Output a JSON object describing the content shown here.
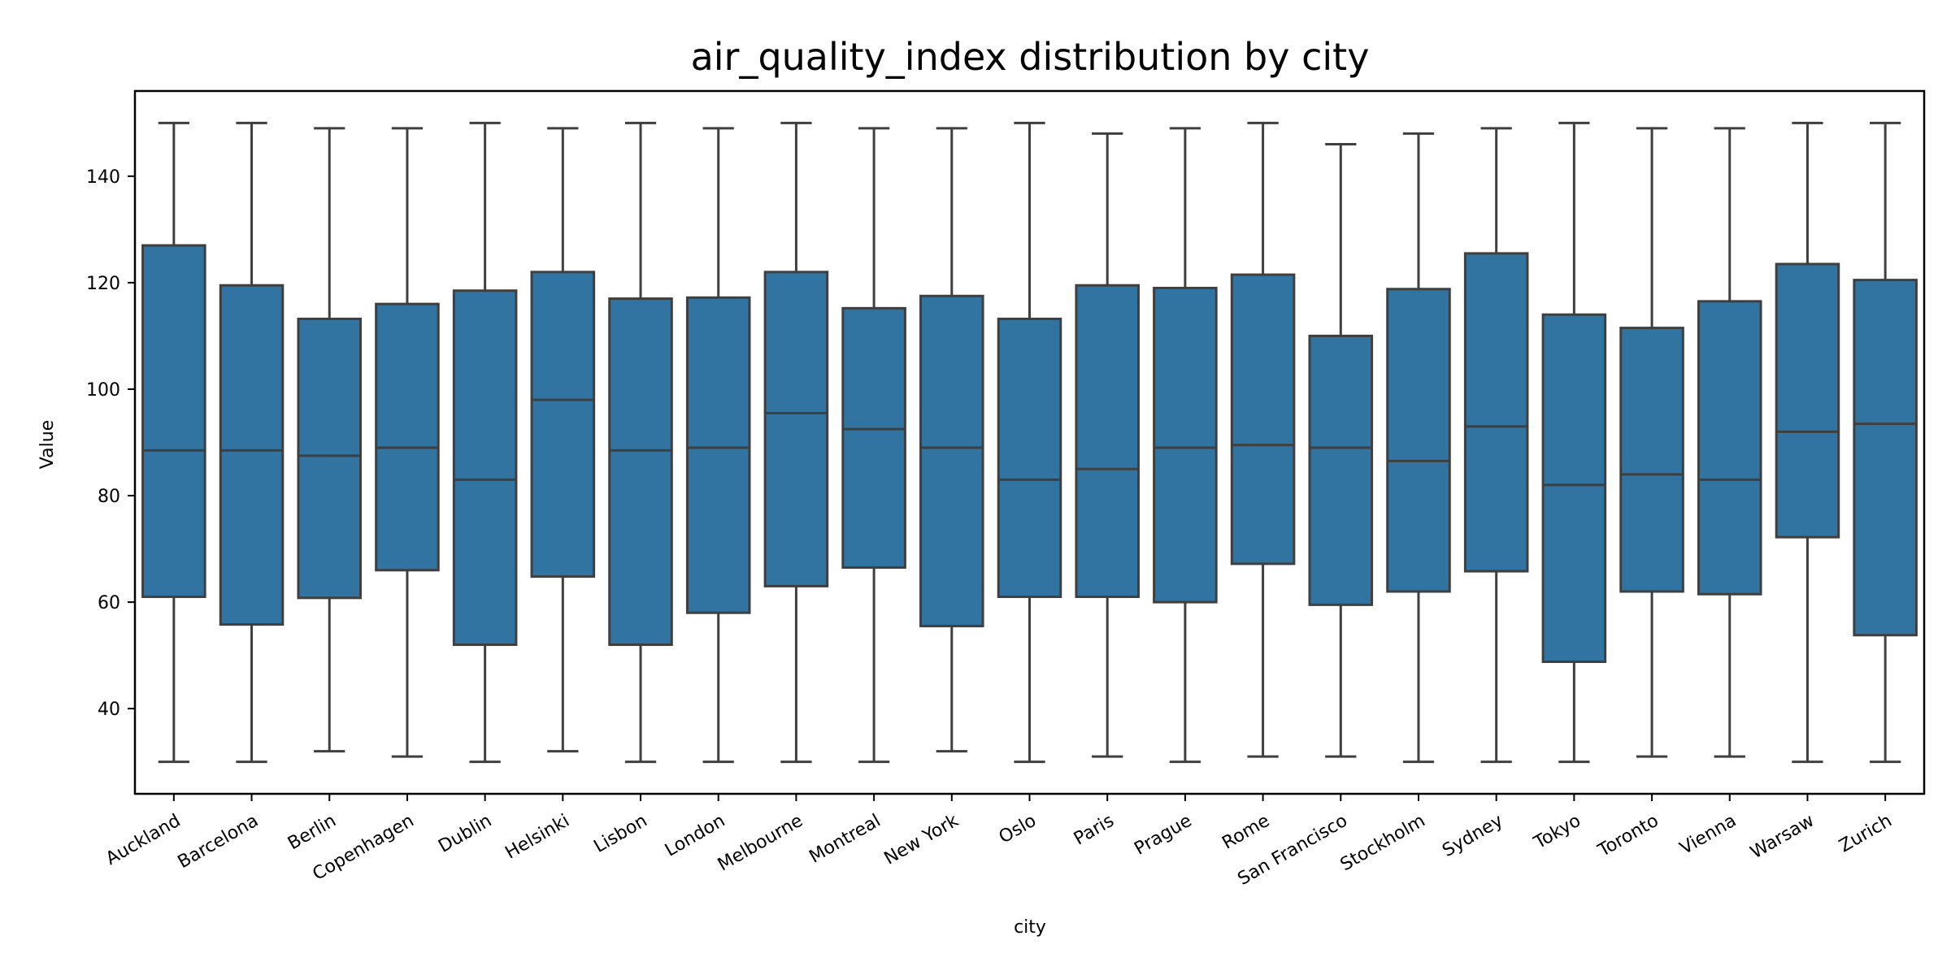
{
  "chart_data": {
    "type": "box",
    "title": "air_quality_index distribution by city",
    "xlabel": "city",
    "ylabel": "Value",
    "ylim": [
      24,
      156
    ],
    "yticks": [
      40,
      60,
      80,
      100,
      120,
      140
    ],
    "grid": false,
    "legend": "none",
    "box_color": "#3274a1",
    "line_color": "#3f3f3f",
    "categories": [
      "Auckland",
      "Barcelona",
      "Berlin",
      "Copenhagen",
      "Dublin",
      "Helsinki",
      "Lisbon",
      "London",
      "Melbourne",
      "Montreal",
      "New York",
      "Oslo",
      "Paris",
      "Prague",
      "Rome",
      "San Francisco",
      "Stockholm",
      "Sydney",
      "Tokyo",
      "Toronto",
      "Vienna",
      "Warsaw",
      "Zurich"
    ],
    "boxes": [
      {
        "min": 30,
        "q1": 61.0,
        "median": 88.5,
        "q3": 127.0,
        "max": 150
      },
      {
        "min": 30,
        "q1": 55.8,
        "median": 88.5,
        "q3": 119.5,
        "max": 150
      },
      {
        "min": 32,
        "q1": 60.8,
        "median": 87.5,
        "q3": 113.2,
        "max": 149
      },
      {
        "min": 31,
        "q1": 66.0,
        "median": 89.0,
        "q3": 116.0,
        "max": 149
      },
      {
        "min": 30,
        "q1": 52.0,
        "median": 83.0,
        "q3": 118.5,
        "max": 150
      },
      {
        "min": 32,
        "q1": 64.8,
        "median": 98.0,
        "q3": 122.0,
        "max": 149
      },
      {
        "min": 30,
        "q1": 52.0,
        "median": 88.5,
        "q3": 117.0,
        "max": 150
      },
      {
        "min": 30,
        "q1": 58.0,
        "median": 89.0,
        "q3": 117.2,
        "max": 149
      },
      {
        "min": 30,
        "q1": 63.0,
        "median": 95.5,
        "q3": 122.0,
        "max": 150
      },
      {
        "min": 30,
        "q1": 66.5,
        "median": 92.5,
        "q3": 115.2,
        "max": 149
      },
      {
        "min": 32,
        "q1": 55.5,
        "median": 89.0,
        "q3": 117.5,
        "max": 149
      },
      {
        "min": 30,
        "q1": 61.0,
        "median": 83.0,
        "q3": 113.2,
        "max": 150
      },
      {
        "min": 31,
        "q1": 61.0,
        "median": 85.0,
        "q3": 119.5,
        "max": 148
      },
      {
        "min": 30,
        "q1": 60.0,
        "median": 89.0,
        "q3": 119.0,
        "max": 149
      },
      {
        "min": 31,
        "q1": 67.2,
        "median": 89.5,
        "q3": 121.5,
        "max": 150
      },
      {
        "min": 31,
        "q1": 59.5,
        "median": 89.0,
        "q3": 110.0,
        "max": 146
      },
      {
        "min": 30,
        "q1": 62.0,
        "median": 86.5,
        "q3": 118.8,
        "max": 148
      },
      {
        "min": 30,
        "q1": 65.8,
        "median": 93.0,
        "q3": 125.5,
        "max": 149
      },
      {
        "min": 30,
        "q1": 48.8,
        "median": 82.0,
        "q3": 114.0,
        "max": 150
      },
      {
        "min": 31,
        "q1": 62.0,
        "median": 84.0,
        "q3": 111.5,
        "max": 149
      },
      {
        "min": 31,
        "q1": 61.5,
        "median": 83.0,
        "q3": 116.5,
        "max": 149
      },
      {
        "min": 30,
        "q1": 72.2,
        "median": 92.0,
        "q3": 123.5,
        "max": 150
      },
      {
        "min": 30,
        "q1": 53.8,
        "median": 93.5,
        "q3": 120.5,
        "max": 150
      }
    ]
  }
}
